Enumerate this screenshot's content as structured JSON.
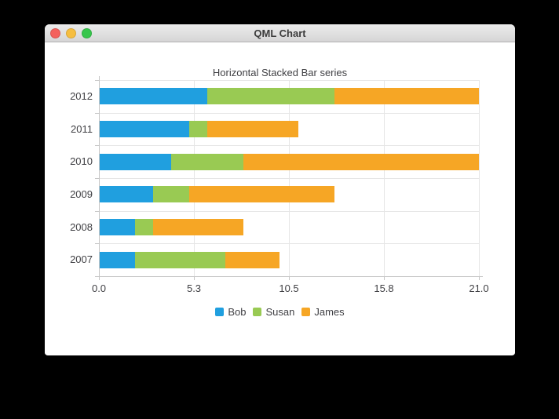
{
  "window": {
    "title": "QML Chart",
    "controls": {
      "close": {
        "name": "close",
        "color": "#f4615c"
      },
      "minimize": {
        "name": "minimize",
        "color": "#f6be40"
      },
      "zoom": {
        "name": "zoom",
        "color": "#37c64c"
      }
    }
  },
  "chart_data": {
    "type": "bar",
    "orientation": "horizontal",
    "stacked": true,
    "title": "Horizontal Stacked Bar series",
    "categories": [
      "2007",
      "2008",
      "2009",
      "2010",
      "2011",
      "2012"
    ],
    "category_display_order": "2007 at bottom, 2012 at top",
    "series": [
      {
        "name": "Bob",
        "color": "#209fdf",
        "values": [
          2,
          2,
          3,
          4,
          5,
          6
        ]
      },
      {
        "name": "Susan",
        "color": "#99ca53",
        "values": [
          5,
          1,
          2,
          4,
          1,
          7
        ]
      },
      {
        "name": "James",
        "color": "#f6a625",
        "values": [
          3,
          5,
          8,
          13,
          5,
          8
        ]
      }
    ],
    "x_axis": {
      "min": 0,
      "max": 21,
      "tick_labels": [
        "0.0",
        "5.3",
        "10.5",
        "15.8",
        "21.0"
      ]
    },
    "legend": {
      "position": "bottom",
      "entries": [
        "Bob",
        "Susan",
        "James"
      ]
    },
    "grid": true,
    "text_color": "#404044",
    "grid_color": "#e6e6e6",
    "axis_color": "#c7c7c7"
  }
}
